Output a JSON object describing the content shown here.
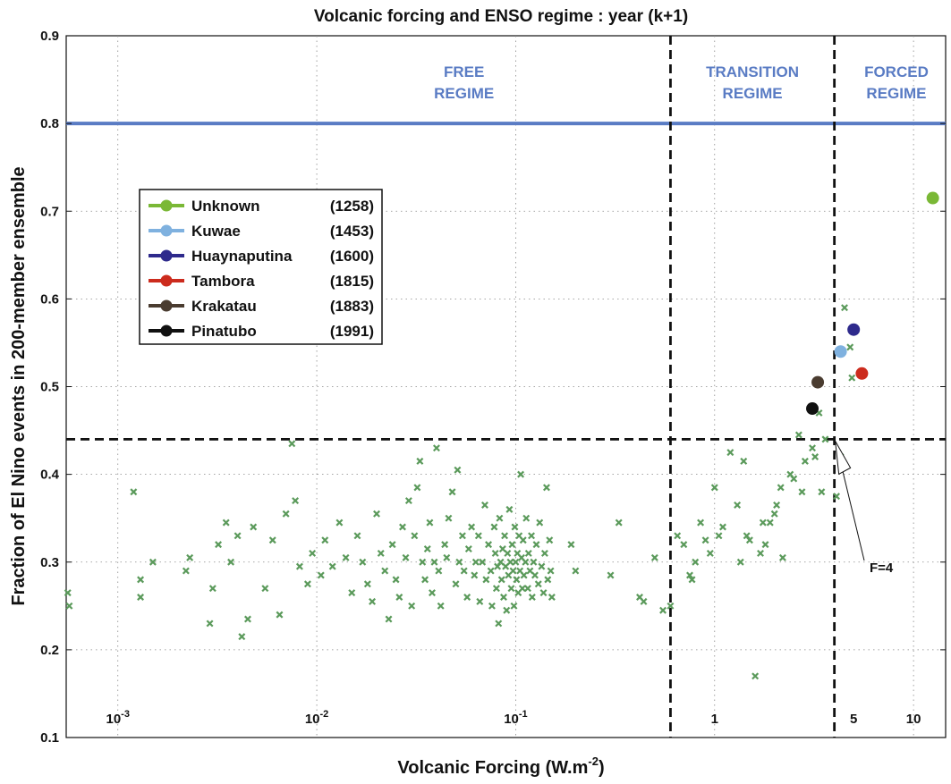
{
  "chart_data": {
    "type": "scatter",
    "title": "Volcanic forcing and ENSO regime : year (k+1)",
    "xlabel_base": "Volcanic Forcing (W.m",
    "xlabel_exp": "-2",
    "xlabel_close": ")",
    "ylabel": "Fraction of El Nino events in 200-member ensemble",
    "x_scale": "log",
    "xlim": [
      0.00055,
      14.5
    ],
    "ylim": [
      0.1,
      0.9
    ],
    "grid": true,
    "y_ticks": [
      "0.1",
      "0.2",
      "0.3",
      "0.4",
      "0.5",
      "0.6",
      "0.7",
      "0.8",
      "0.9"
    ],
    "x_tick_labels": [
      {
        "value": 0.001,
        "base": "10",
        "exp": "-3"
      },
      {
        "value": 0.01,
        "base": "10",
        "exp": "-2"
      },
      {
        "value": 0.1,
        "base": "10",
        "exp": "-1"
      },
      {
        "value": 1,
        "base": "1",
        "exp": ""
      },
      {
        "value": 5,
        "base": "5",
        "exp": ""
      },
      {
        "value": 10,
        "base": "10",
        "exp": ""
      }
    ],
    "regime_line_y": 0.8,
    "threshold_y": 0.44,
    "regime_boundaries_x": [
      0.6,
      4
    ],
    "regimes": [
      {
        "line1": "FREE",
        "line2": "REGIME",
        "x": 0.055
      },
      {
        "line1": "TRANSITION",
        "line2": "REGIME",
        "x": 1.55
      },
      {
        "line1": "FORCED",
        "line2": "REGIME",
        "x": 8.2
      }
    ],
    "annotation": {
      "text": "F=4",
      "x": 4,
      "y": 0.44
    },
    "legend_placement": "upper-left",
    "series": [
      {
        "name": "Unknown",
        "year": "(1258)",
        "color": "#7ab836",
        "points": [
          [
            12.5,
            0.715
          ]
        ]
      },
      {
        "name": "Kuwae",
        "year": "(1453)",
        "color": "#7fb1df",
        "points": [
          [
            4.3,
            0.54
          ]
        ]
      },
      {
        "name": "Huaynaputina",
        "year": "(1600)",
        "color": "#2e2a8c",
        "points": [
          [
            5.0,
            0.565
          ]
        ]
      },
      {
        "name": "Tambora",
        "year": "(1815)",
        "color": "#cc2b1d",
        "points": [
          [
            5.5,
            0.515
          ]
        ]
      },
      {
        "name": "Krakatau",
        "year": "(1883)",
        "color": "#4a3c30",
        "points": [
          [
            3.3,
            0.505
          ]
        ]
      },
      {
        "name": "Pinatubo",
        "year": "(1991)",
        "color": "#111111",
        "points": [
          [
            3.1,
            0.475
          ]
        ]
      }
    ],
    "ensemble_color": "#5b9a5b",
    "ensemble_points": [
      [
        0.00056,
        0.265
      ],
      [
        0.00057,
        0.25
      ],
      [
        0.0012,
        0.38
      ],
      [
        0.0013,
        0.28
      ],
      [
        0.0013,
        0.26
      ],
      [
        0.0015,
        0.3
      ],
      [
        0.0022,
        0.29
      ],
      [
        0.0023,
        0.305
      ],
      [
        0.0029,
        0.23
      ],
      [
        0.003,
        0.27
      ],
      [
        0.0032,
        0.32
      ],
      [
        0.0035,
        0.345
      ],
      [
        0.0037,
        0.3
      ],
      [
        0.004,
        0.33
      ],
      [
        0.0042,
        0.215
      ],
      [
        0.0045,
        0.235
      ],
      [
        0.0048,
        0.34
      ],
      [
        0.0055,
        0.27
      ],
      [
        0.006,
        0.325
      ],
      [
        0.0065,
        0.24
      ],
      [
        0.007,
        0.355
      ],
      [
        0.0075,
        0.435
      ],
      [
        0.0078,
        0.37
      ],
      [
        0.0082,
        0.295
      ],
      [
        0.009,
        0.275
      ],
      [
        0.0095,
        0.31
      ],
      [
        0.0105,
        0.285
      ],
      [
        0.011,
        0.325
      ],
      [
        0.012,
        0.295
      ],
      [
        0.013,
        0.345
      ],
      [
        0.014,
        0.305
      ],
      [
        0.015,
        0.265
      ],
      [
        0.016,
        0.33
      ],
      [
        0.017,
        0.3
      ],
      [
        0.018,
        0.275
      ],
      [
        0.019,
        0.255
      ],
      [
        0.02,
        0.355
      ],
      [
        0.021,
        0.31
      ],
      [
        0.022,
        0.29
      ],
      [
        0.023,
        0.235
      ],
      [
        0.024,
        0.32
      ],
      [
        0.025,
        0.28
      ],
      [
        0.026,
        0.26
      ],
      [
        0.027,
        0.34
      ],
      [
        0.028,
        0.305
      ],
      [
        0.029,
        0.37
      ],
      [
        0.03,
        0.25
      ],
      [
        0.031,
        0.33
      ],
      [
        0.032,
        0.385
      ],
      [
        0.033,
        0.415
      ],
      [
        0.034,
        0.3
      ],
      [
        0.035,
        0.28
      ],
      [
        0.036,
        0.315
      ],
      [
        0.037,
        0.345
      ],
      [
        0.038,
        0.265
      ],
      [
        0.039,
        0.3
      ],
      [
        0.04,
        0.43
      ],
      [
        0.041,
        0.29
      ],
      [
        0.042,
        0.25
      ],
      [
        0.044,
        0.32
      ],
      [
        0.045,
        0.305
      ],
      [
        0.046,
        0.35
      ],
      [
        0.048,
        0.38
      ],
      [
        0.05,
        0.275
      ],
      [
        0.051,
        0.405
      ],
      [
        0.052,
        0.3
      ],
      [
        0.054,
        0.33
      ],
      [
        0.055,
        0.29
      ],
      [
        0.057,
        0.26
      ],
      [
        0.058,
        0.315
      ],
      [
        0.06,
        0.34
      ],
      [
        0.062,
        0.285
      ],
      [
        0.063,
        0.3
      ],
      [
        0.065,
        0.33
      ],
      [
        0.066,
        0.255
      ],
      [
        0.068,
        0.3
      ],
      [
        0.07,
        0.365
      ],
      [
        0.071,
        0.28
      ],
      [
        0.073,
        0.32
      ],
      [
        0.075,
        0.29
      ],
      [
        0.076,
        0.25
      ],
      [
        0.078,
        0.34
      ],
      [
        0.079,
        0.31
      ],
      [
        0.08,
        0.27
      ],
      [
        0.081,
        0.295
      ],
      [
        0.082,
        0.23
      ],
      [
        0.083,
        0.35
      ],
      [
        0.084,
        0.3
      ],
      [
        0.085,
        0.28
      ],
      [
        0.086,
        0.315
      ],
      [
        0.087,
        0.26
      ],
      [
        0.088,
        0.33
      ],
      [
        0.089,
        0.295
      ],
      [
        0.09,
        0.245
      ],
      [
        0.091,
        0.31
      ],
      [
        0.092,
        0.285
      ],
      [
        0.093,
        0.36
      ],
      [
        0.094,
        0.3
      ],
      [
        0.095,
        0.27
      ],
      [
        0.096,
        0.32
      ],
      [
        0.097,
        0.29
      ],
      [
        0.098,
        0.25
      ],
      [
        0.099,
        0.34
      ],
      [
        0.1,
        0.3
      ],
      [
        0.101,
        0.28
      ],
      [
        0.102,
        0.31
      ],
      [
        0.103,
        0.265
      ],
      [
        0.104,
        0.33
      ],
      [
        0.105,
        0.29
      ],
      [
        0.106,
        0.4
      ],
      [
        0.107,
        0.305
      ],
      [
        0.108,
        0.27
      ],
      [
        0.109,
        0.325
      ],
      [
        0.11,
        0.285
      ],
      [
        0.112,
        0.3
      ],
      [
        0.113,
        0.35
      ],
      [
        0.115,
        0.27
      ],
      [
        0.116,
        0.31
      ],
      [
        0.118,
        0.29
      ],
      [
        0.12,
        0.33
      ],
      [
        0.121,
        0.26
      ],
      [
        0.123,
        0.3
      ],
      [
        0.125,
        0.285
      ],
      [
        0.127,
        0.32
      ],
      [
        0.13,
        0.275
      ],
      [
        0.132,
        0.345
      ],
      [
        0.135,
        0.295
      ],
      [
        0.138,
        0.265
      ],
      [
        0.14,
        0.31
      ],
      [
        0.143,
        0.385
      ],
      [
        0.145,
        0.28
      ],
      [
        0.148,
        0.325
      ],
      [
        0.15,
        0.29
      ],
      [
        0.152,
        0.26
      ],
      [
        0.19,
        0.32
      ],
      [
        0.2,
        0.29
      ],
      [
        0.3,
        0.285
      ],
      [
        0.33,
        0.345
      ],
      [
        0.42,
        0.26
      ],
      [
        0.44,
        0.255
      ],
      [
        0.5,
        0.305
      ],
      [
        0.55,
        0.245
      ],
      [
        0.6,
        0.25
      ],
      [
        0.65,
        0.33
      ],
      [
        0.7,
        0.32
      ],
      [
        0.75,
        0.285
      ],
      [
        0.77,
        0.28
      ],
      [
        0.8,
        0.3
      ],
      [
        0.85,
        0.345
      ],
      [
        0.9,
        0.325
      ],
      [
        0.95,
        0.31
      ],
      [
        1.0,
        0.385
      ],
      [
        1.05,
        0.33
      ],
      [
        1.1,
        0.34
      ],
      [
        1.2,
        0.425
      ],
      [
        1.3,
        0.365
      ],
      [
        1.35,
        0.3
      ],
      [
        1.4,
        0.415
      ],
      [
        1.45,
        0.33
      ],
      [
        1.5,
        0.325
      ],
      [
        1.6,
        0.17
      ],
      [
        1.7,
        0.31
      ],
      [
        1.75,
        0.345
      ],
      [
        1.8,
        0.32
      ],
      [
        1.9,
        0.345
      ],
      [
        2.0,
        0.355
      ],
      [
        2.05,
        0.365
      ],
      [
        2.15,
        0.385
      ],
      [
        2.2,
        0.305
      ],
      [
        2.4,
        0.4
      ],
      [
        2.5,
        0.395
      ],
      [
        2.65,
        0.445
      ],
      [
        2.75,
        0.38
      ],
      [
        2.85,
        0.415
      ],
      [
        3.1,
        0.43
      ],
      [
        3.2,
        0.42
      ],
      [
        3.35,
        0.47
      ],
      [
        3.45,
        0.38
      ],
      [
        3.6,
        0.44
      ],
      [
        4.1,
        0.375
      ],
      [
        4.3,
        0.42
      ],
      [
        4.5,
        0.59
      ],
      [
        4.8,
        0.545
      ],
      [
        4.9,
        0.51
      ]
    ]
  }
}
